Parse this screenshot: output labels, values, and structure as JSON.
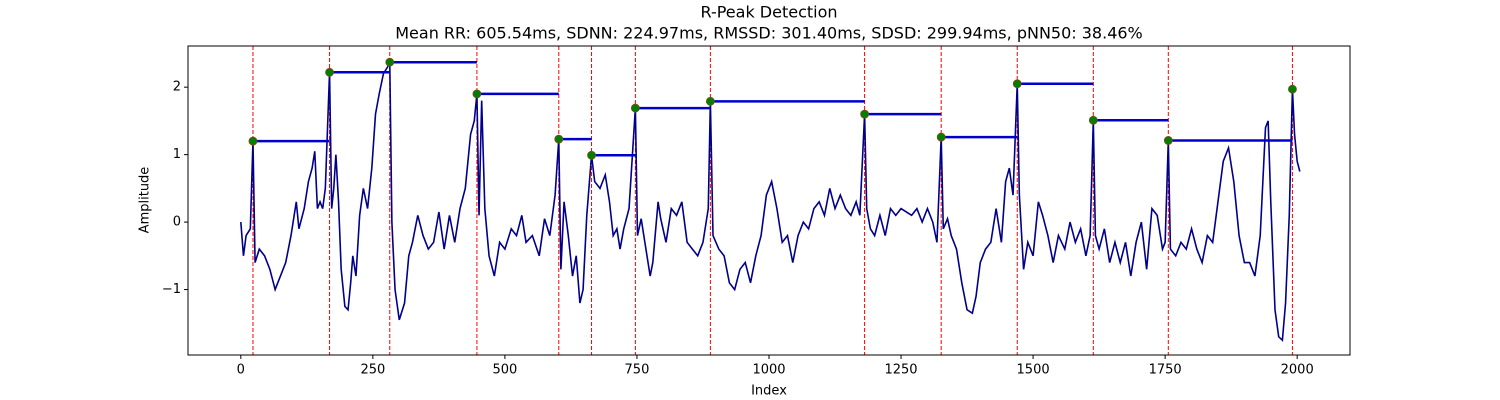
{
  "chart_data": {
    "type": "line",
    "title": "R-Peak Detection",
    "subtitle": "Mean RR: 605.54ms, SDNN: 224.97ms, RMSSD: 301.40ms, SDSD: 299.94ms, pNN50: 38.46%",
    "xlabel": "Index",
    "ylabel": "Amplitude",
    "xlim": [
      -100,
      2100
    ],
    "ylim": [
      -1.97,
      2.61
    ],
    "xticks": [
      0,
      250,
      500,
      750,
      1000,
      1250,
      1500,
      1750,
      2000
    ],
    "yticks": [
      {
        "value": -1,
        "label": "−1"
      },
      0,
      1,
      2
    ],
    "series": [
      {
        "color": "#00008b",
        "x": [
          0,
          5,
          10,
          18,
          23,
          27,
          35,
          45,
          55,
          65,
          75,
          85,
          95,
          105,
          110,
          120,
          128,
          135,
          140,
          145,
          150,
          155,
          160,
          168,
          172,
          176,
          180,
          185,
          190,
          197,
          203,
          208,
          212,
          218,
          225,
          232,
          240,
          248,
          255,
          262,
          270,
          278,
          282,
          286,
          292,
          300,
          310,
          318,
          325,
          335,
          345,
          355,
          365,
          375,
          385,
          395,
          405,
          415,
          425,
          435,
          442,
          447,
          451,
          456,
          462,
          470,
          480,
          490,
          500,
          512,
          522,
          532,
          540,
          552,
          565,
          575,
          585,
          595,
          602,
          606,
          612,
          620,
          628,
          635,
          642,
          648,
          655,
          664,
          670,
          680,
          690,
          698,
          705,
          712,
          718,
          725,
          735,
          747,
          751,
          758,
          765,
          775,
          780,
          790,
          795,
          805,
          815,
          825,
          835,
          845,
          855,
          865,
          875,
          885,
          889,
          894,
          905,
          915,
          925,
          935,
          945,
          955,
          965,
          975,
          985,
          995,
          1005,
          1015,
          1025,
          1035,
          1045,
          1055,
          1065,
          1075,
          1085,
          1095,
          1105,
          1115,
          1125,
          1135,
          1145,
          1155,
          1165,
          1172,
          1181,
          1185,
          1192,
          1200,
          1210,
          1220,
          1230,
          1240,
          1250,
          1260,
          1270,
          1280,
          1290,
          1300,
          1310,
          1318,
          1326,
          1330,
          1338,
          1345,
          1355,
          1365,
          1375,
          1385,
          1392,
          1400,
          1410,
          1420,
          1430,
          1440,
          1448,
          1455,
          1462,
          1470,
          1474,
          1482,
          1490,
          1500,
          1510,
          1518,
          1528,
          1538,
          1548,
          1560,
          1570,
          1580,
          1590,
          1600,
          1608,
          1614,
          1618,
          1625,
          1635,
          1645,
          1655,
          1665,
          1675,
          1685,
          1695,
          1705,
          1715,
          1725,
          1735,
          1745,
          1750,
          1756,
          1760,
          1770,
          1780,
          1790,
          1800,
          1810,
          1820,
          1830,
          1840,
          1850,
          1860,
          1870,
          1880,
          1890,
          1900,
          1910,
          1920,
          1930,
          1940,
          1945,
          1950,
          1958,
          1965,
          1972,
          1978,
          1985,
          1991,
          1995,
          2000,
          2005
        ],
        "values": [
          0,
          -0.5,
          -0.2,
          -0.1,
          1.2,
          -0.6,
          -0.4,
          -0.5,
          -0.7,
          -1.0,
          -0.8,
          -0.6,
          -0.2,
          0.3,
          -0.1,
          0.2,
          0.6,
          0.8,
          1.05,
          0.2,
          0.3,
          0.2,
          0.5,
          2.22,
          0.2,
          0.5,
          1.0,
          0.3,
          -0.7,
          -1.25,
          -1.3,
          -0.9,
          -0.5,
          -0.8,
          0.1,
          0.5,
          0.2,
          0.8,
          1.6,
          1.9,
          2.2,
          2.3,
          2.37,
          0.0,
          -1.0,
          -1.45,
          -1.2,
          -0.5,
          -0.3,
          0.1,
          -0.2,
          -0.4,
          -0.3,
          0.15,
          -0.4,
          0.1,
          -0.3,
          0.2,
          0.5,
          1.3,
          1.5,
          1.9,
          0.1,
          1.8,
          0.2,
          -0.5,
          -0.8,
          -0.3,
          -0.4,
          -0.1,
          -0.2,
          0.1,
          -0.3,
          -0.2,
          -0.5,
          0.05,
          -0.2,
          0.4,
          1.23,
          -0.7,
          0.3,
          -0.2,
          -0.8,
          -0.5,
          -1.2,
          -1.0,
          0.1,
          0.99,
          0.6,
          0.5,
          0.7,
          0.3,
          -0.2,
          -0.1,
          -0.4,
          -0.1,
          0.2,
          1.69,
          -0.2,
          0.05,
          -0.3,
          -0.8,
          -0.6,
          0.3,
          0.05,
          -0.3,
          0.2,
          0.1,
          0.3,
          -0.3,
          -0.4,
          -0.5,
          -0.3,
          0.2,
          1.79,
          -0.2,
          -0.4,
          -0.5,
          -0.9,
          -1.0,
          -0.7,
          -0.6,
          -0.9,
          -0.5,
          -0.2,
          0.4,
          0.6,
          0.2,
          -0.3,
          -0.2,
          -0.6,
          -0.2,
          0.0,
          -0.1,
          0.2,
          0.3,
          0.1,
          0.5,
          0.2,
          0.4,
          0.2,
          0.1,
          0.3,
          0.1,
          1.6,
          0.2,
          -0.1,
          -0.2,
          0.1,
          -0.2,
          0.2,
          0.1,
          0.2,
          0.15,
          0.1,
          0.2,
          0.0,
          0.2,
          0.0,
          -0.3,
          1.26,
          -0.1,
          0.05,
          -0.2,
          -0.4,
          -0.9,
          -1.3,
          -1.35,
          -1.1,
          -0.6,
          -0.4,
          -0.3,
          0.2,
          -0.3,
          0.6,
          0.8,
          0.4,
          2.05,
          0.4,
          -0.7,
          -0.3,
          -0.5,
          0.3,
          0.1,
          -0.2,
          -0.6,
          -0.2,
          -0.4,
          0.0,
          -0.3,
          -0.1,
          -0.5,
          -0.2,
          1.51,
          -0.2,
          -0.4,
          -0.1,
          -0.6,
          -0.3,
          -0.6,
          -0.3,
          -0.8,
          -0.3,
          0.0,
          -0.7,
          0.2,
          0.1,
          -0.4,
          -0.3,
          1.21,
          -0.4,
          -0.5,
          -0.3,
          -0.4,
          -0.1,
          -0.4,
          -0.6,
          -0.2,
          -0.3,
          0.3,
          0.9,
          1.1,
          0.6,
          -0.2,
          -0.6,
          -0.6,
          -0.8,
          -0.2,
          1.4,
          1.5,
          0.3,
          -1.3,
          -1.7,
          -1.75,
          -1.2,
          0.1,
          1.97,
          1.3,
          0.9,
          0.75
        ]
      },
      {
        "type": "peaks",
        "color": "#008000",
        "edge_color": "#8b4513",
        "marker_line_color": "#ff0000",
        "interval_color": "#0000cd",
        "x": [
          23,
          168,
          282,
          447,
          602,
          664,
          747,
          889,
          1181,
          1326,
          1470,
          1614,
          1756,
          1991
        ],
        "values": [
          1.2,
          2.22,
          2.37,
          1.9,
          1.23,
          0.99,
          1.69,
          1.79,
          1.6,
          1.26,
          2.05,
          1.51,
          1.21,
          1.97
        ]
      }
    ]
  }
}
